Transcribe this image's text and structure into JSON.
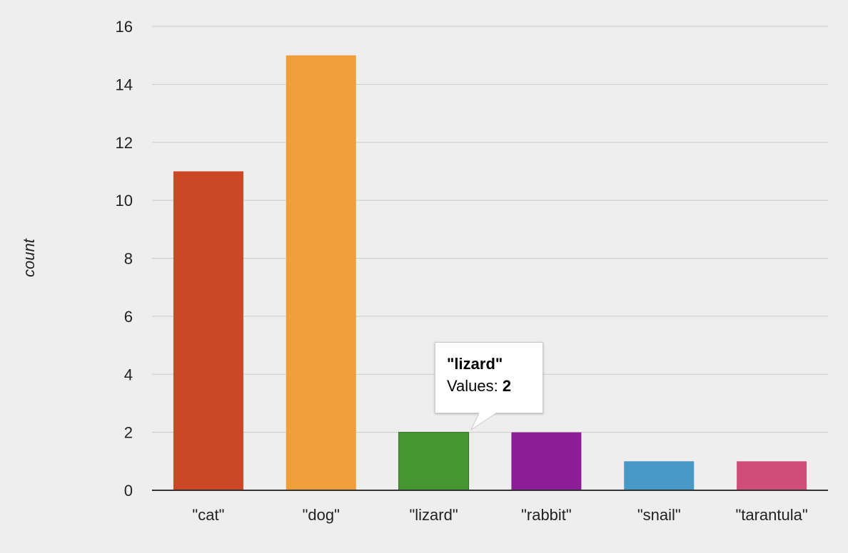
{
  "chart_data": {
    "type": "bar",
    "categories": [
      "\"cat\"",
      "\"dog\"",
      "\"lizard\"",
      "\"rabbit\"",
      "\"snail\"",
      "\"tarantula\""
    ],
    "values": [
      11,
      15,
      2,
      2,
      1,
      1
    ],
    "colors": [
      "#cc4726",
      "#f09e3a",
      "#45962f",
      "#8c1d96",
      "#4898c8",
      "#cf4e79"
    ],
    "xlabel": "",
    "ylabel": "count",
    "ylim": [
      0,
      16
    ],
    "yticks": [
      0,
      2,
      4,
      6,
      8,
      10,
      12,
      14,
      16
    ],
    "grid": true,
    "highlighted_category": "\"lizard\""
  },
  "tooltip": {
    "title": "\"lizard\"",
    "value_label": "Values:",
    "value": "2"
  }
}
